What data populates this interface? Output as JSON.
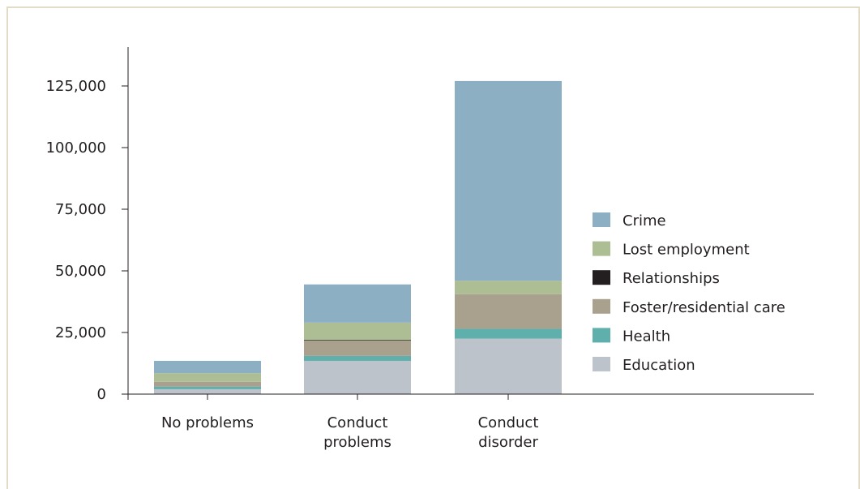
{
  "chart_data": {
    "type": "bar",
    "stacked": true,
    "categories": [
      [
        "No problems"
      ],
      [
        "Conduct",
        "problems"
      ],
      [
        "Conduct",
        "disorder"
      ]
    ],
    "series": [
      {
        "name": "Education",
        "color": "#bdc3cb",
        "values": [
          2000,
          13500,
          22500
        ]
      },
      {
        "name": "Health",
        "color": "#5fb0ac",
        "values": [
          1000,
          2000,
          4000
        ]
      },
      {
        "name": "Foster/residential care",
        "color": "#a9a08e",
        "values": [
          2000,
          6500,
          14000
        ]
      },
      {
        "name": "Relationships",
        "color": "#231f20",
        "values": [
          0,
          0,
          0
        ]
      },
      {
        "name": "Lost employment",
        "color": "#adbd94",
        "values": [
          3500,
          7000,
          5500
        ]
      },
      {
        "name": "Crime",
        "color": "#8cafc4",
        "values": [
          5000,
          15500,
          81000
        ]
      }
    ],
    "yticks": [
      0,
      25000,
      50000,
      75000,
      100000,
      125000
    ],
    "ytick_labels": [
      "0",
      "25,000",
      "50,000",
      "75,000",
      "100,000",
      "125,000"
    ],
    "ylim": [
      0,
      140000
    ],
    "legend_order": [
      "Crime",
      "Lost employment",
      "Relationships",
      "Foster/residential care",
      "Health",
      "Education"
    ],
    "legend_position": "right",
    "grid": false
  }
}
